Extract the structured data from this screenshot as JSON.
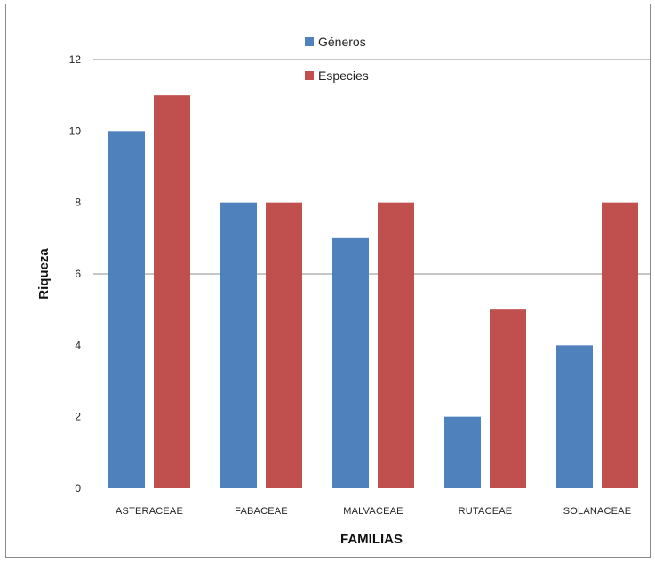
{
  "chart_data": {
    "type": "bar",
    "title": "",
    "xlabel": "FAMILIAS",
    "ylabel": "Riqueza",
    "categories": [
      "ASTERACEAE",
      "FABACEAE",
      "MALVACEAE",
      "RUTACEAE",
      "SOLANACEAE"
    ],
    "series": [
      {
        "name": "Géneros",
        "values": [
          10,
          8,
          7,
          2,
          4
        ],
        "color": "#4f81bd"
      },
      {
        "name": "Especies",
        "values": [
          11,
          8,
          8,
          5,
          8
        ],
        "color": "#c0504d"
      }
    ],
    "ylim": [
      0,
      12
    ],
    "yticks": [
      0,
      2,
      4,
      6,
      8,
      10,
      12
    ],
    "grid_values": [
      6,
      12
    ],
    "legend_position": "top"
  }
}
